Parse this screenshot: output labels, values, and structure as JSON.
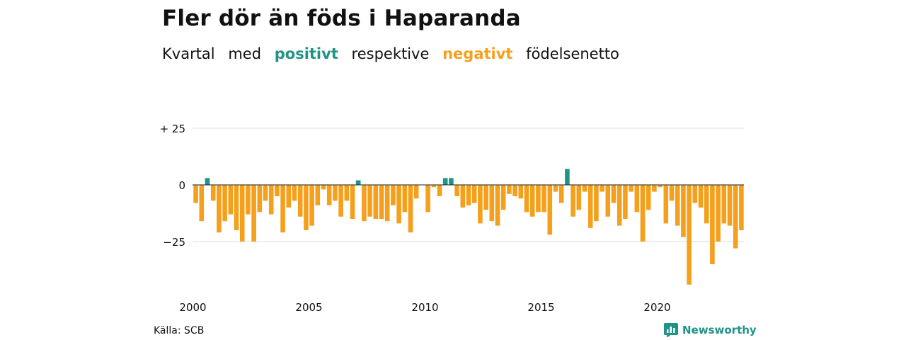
{
  "header": {
    "title": "Fler dör än föds i Haparanda",
    "subtitle_1": "Kvartal",
    "subtitle_2": "med",
    "subtitle_positive": "positivt",
    "subtitle_3": "respektive",
    "subtitle_negative": "negativt",
    "subtitle_4": "födelsenetto"
  },
  "footer": {
    "source": "Källa: SCB",
    "brand": "Newsworthy"
  },
  "colors": {
    "positive": "#1f9384",
    "negative": "#f5a01d",
    "grid": "#dddddd",
    "zero_line": "#222222"
  },
  "chart_data": {
    "type": "bar",
    "title": "Fler dör än föds i Haparanda",
    "subtitle": "Kvartal med positivt respektive negativt födelsenetto",
    "xlabel": "",
    "ylabel": "",
    "x_start": 2000.0,
    "x_step": 0.25,
    "xlim": [
      2000,
      2023.75
    ],
    "ylim": [
      -44,
      25
    ],
    "y_ticks": [
      25,
      0,
      -25
    ],
    "y_tick_labels": [
      "+ 25",
      "0",
      "−25"
    ],
    "x_ticks": [
      2000,
      2005,
      2010,
      2015,
      2020
    ],
    "x_tick_labels": [
      "2000",
      "2005",
      "2010",
      "2015",
      "2020"
    ],
    "grid": true,
    "legend": "none",
    "values": [
      -8,
      -16,
      3,
      -7,
      -21,
      -16,
      -13,
      -20,
      -25,
      -13,
      -25,
      -12,
      -7,
      -13,
      -5,
      -21,
      -10,
      -7,
      -14,
      -20,
      -18,
      -9,
      -2,
      -9,
      -7,
      -14,
      -7,
      -15,
      2,
      -16,
      -14,
      -15,
      -15,
      -16,
      -9,
      -17,
      -12,
      -21,
      -6,
      0,
      -12,
      -1,
      -5,
      3,
      3,
      -5,
      -10,
      -9,
      -8,
      -17,
      -11,
      -16,
      -18,
      -11,
      -4,
      -5,
      -6,
      -12,
      -14,
      -12,
      -12,
      -22,
      -3,
      -8,
      7,
      -14,
      -11,
      -3,
      -19,
      -16,
      -3,
      -14,
      -8,
      -18,
      -15,
      -3,
      -12,
      -25,
      -11,
      -3,
      -1,
      -17,
      -7,
      -18,
      -23,
      -44,
      -8,
      -10,
      -17,
      -35,
      -25,
      -17,
      -18,
      -28,
      -20
    ]
  }
}
